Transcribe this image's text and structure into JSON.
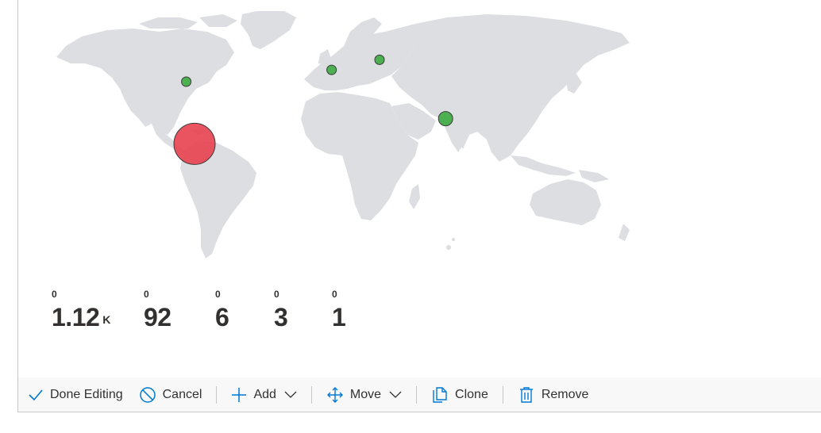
{
  "map": {
    "markers": [
      {
        "label": "",
        "lon": -75,
        "lat": 5,
        "color": "#e8404f",
        "size": "large"
      },
      {
        "label": "",
        "lon": -80,
        "lat": 42,
        "color": "#4caf50",
        "size": "small"
      },
      {
        "label": "",
        "lon": 8,
        "lat": 49,
        "color": "#4caf50",
        "size": "small"
      },
      {
        "label": "",
        "lon": 37,
        "lat": 55,
        "color": "#4caf50",
        "size": "small"
      },
      {
        "label": "",
        "lon": 77,
        "lat": 20,
        "color": "#4caf50",
        "size": "medium"
      }
    ],
    "land_color": "#dcdee2"
  },
  "stats": [
    {
      "small": "0",
      "value": "1.12",
      "suffix": "K"
    },
    {
      "small": "0",
      "value": "92",
      "suffix": ""
    },
    {
      "small": "0",
      "value": "6",
      "suffix": ""
    },
    {
      "small": "0",
      "value": "3",
      "suffix": ""
    },
    {
      "small": "0",
      "value": "1",
      "suffix": ""
    }
  ],
  "toolbar": {
    "done_label": "Done Editing",
    "cancel_label": "Cancel",
    "add_label": "Add",
    "move_label": "Move",
    "clone_label": "Clone",
    "remove_label": "Remove",
    "accent": "#0078d4"
  }
}
